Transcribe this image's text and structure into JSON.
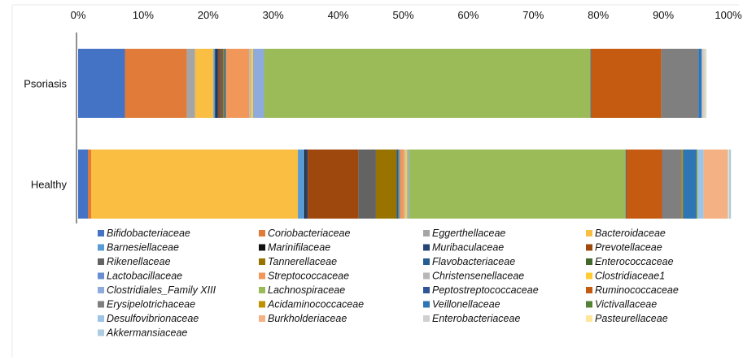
{
  "chart_data": {
    "type": "bar",
    "orientation": "horizontal",
    "stacked": true,
    "xlim": [
      0,
      100
    ],
    "xticks": [
      "0%",
      "10%",
      "20%",
      "30%",
      "40%",
      "50%",
      "60%",
      "70%",
      "80%",
      "90%",
      "100%"
    ],
    "categories": [
      "Psoriasis",
      "Healthy"
    ],
    "legend_position": "bottom",
    "grid": false,
    "series": [
      {
        "name": "Bifidobacteriaceae",
        "color": "#4472C4",
        "values": [
          7.2,
          1.5
        ]
      },
      {
        "name": "Coriobacteriaceae",
        "color": "#E07B39",
        "values": [
          9.5,
          0.5
        ]
      },
      {
        "name": "Eggerthellaceae",
        "color": "#A5A5A5",
        "values": [
          1.3,
          0.0
        ]
      },
      {
        "name": "Bacteroidaceae",
        "color": "#F9BE42",
        "values": [
          2.8,
          31.8
        ]
      },
      {
        "name": "Barnesiellaceae",
        "color": "#5B9BD5",
        "values": [
          0.3,
          1.0
        ]
      },
      {
        "name": "Marinifilaceae",
        "color": "#111111",
        "values": [
          0.2,
          0.2
        ]
      },
      {
        "name": "Muribaculaceae",
        "color": "#264478",
        "values": [
          0.3,
          0.3
        ]
      },
      {
        "name": "Prevotellaceae",
        "color": "#9E480E",
        "values": [
          0.3,
          7.8
        ]
      },
      {
        "name": "Rikenellaceae",
        "color": "#636363",
        "values": [
          0.4,
          2.7
        ]
      },
      {
        "name": "Tannerellaceae",
        "color": "#997300",
        "values": [
          0.2,
          3.2
        ]
      },
      {
        "name": "Flavobacteriaceae",
        "color": "#255E91",
        "values": [
          0.1,
          0.2
        ]
      },
      {
        "name": "Enterococcaceae",
        "color": "#43682B",
        "values": [
          0.1,
          0.1
        ]
      },
      {
        "name": "Lactobacillaceae",
        "color": "#698ED0",
        "values": [
          0.1,
          0.2
        ]
      },
      {
        "name": "Streptococcaceae",
        "color": "#F1975A",
        "values": [
          3.5,
          0.6
        ]
      },
      {
        "name": "Christensenellaceae",
        "color": "#B7B7B7",
        "values": [
          0.3,
          0.2
        ]
      },
      {
        "name": "Clostridiaceae1",
        "color": "#FFCD33",
        "values": [
          0.3,
          0.3
        ]
      },
      {
        "name": "Clostridiales_Family XIII",
        "color": "#8FAADC",
        "values": [
          1.7,
          0.3
        ]
      },
      {
        "name": "Lachnospiraceae",
        "color": "#9BBB59",
        "values": [
          50.2,
          33.3
        ]
      },
      {
        "name": "Peptostreptococcaceae",
        "color": "#2F5597",
        "values": [
          0.1,
          0.1
        ]
      },
      {
        "name": "Ruminococcaceae",
        "color": "#C55A11",
        "values": [
          10.8,
          5.5
        ]
      },
      {
        "name": "Erysipelotrichaceae",
        "color": "#7F7F7F",
        "values": [
          5.7,
          3.0
        ]
      },
      {
        "name": "Acidaminococcaceae",
        "color": "#BF9000",
        "values": [
          0.0,
          0.2
        ]
      },
      {
        "name": "Veillonellaceae",
        "color": "#2E75B6",
        "values": [
          0.5,
          2.0
        ]
      },
      {
        "name": "Victivallaceae",
        "color": "#548235",
        "values": [
          0.0,
          0.2
        ]
      },
      {
        "name": "Desulfovibrionaceae",
        "color": "#9DC3E6",
        "values": [
          0.1,
          1.0
        ]
      },
      {
        "name": "Burkholderiaceae",
        "color": "#F4B183",
        "values": [
          0.1,
          3.7
        ]
      },
      {
        "name": "Enterobacteriaceae",
        "color": "#D0D0D0",
        "values": [
          0.3,
          0.1
        ]
      },
      {
        "name": "Pasteurellaceae",
        "color": "#FFE699",
        "values": [
          0.1,
          0.1
        ]
      },
      {
        "name": "Akkermansiaceae",
        "color": "#ADCBE3",
        "values": [
          0.1,
          0.3
        ]
      }
    ]
  }
}
